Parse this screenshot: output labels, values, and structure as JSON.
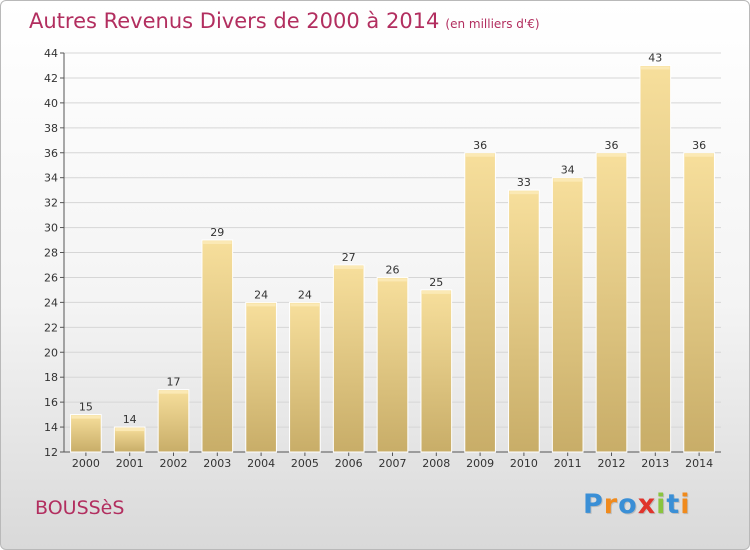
{
  "header": {
    "title": "Autres Revenus Divers de 2000 à 2014",
    "unit": "(en milliers d'€)"
  },
  "footer": {
    "place": "BOUSSèS",
    "logo_letters": [
      "P",
      "r",
      "o",
      "x",
      "i",
      "t",
      "i"
    ],
    "logo_colors": [
      "#3a8fd6",
      "#f08a1c",
      "#3a8fd6",
      "#e0342c",
      "#8ac43f",
      "#3a8fd6",
      "#f08a1c"
    ]
  },
  "chart_data": {
    "type": "bar",
    "title": "Autres Revenus Divers de 2000 à 2014",
    "categories": [
      "2000",
      "2001",
      "2002",
      "2003",
      "2004",
      "2005",
      "2006",
      "2007",
      "2008",
      "2009",
      "2010",
      "2011",
      "2012",
      "2013",
      "2014"
    ],
    "values": [
      15,
      14,
      17,
      29,
      24,
      24,
      27,
      26,
      25,
      36,
      33,
      34,
      36,
      43,
      36
    ],
    "ylim": [
      12,
      44
    ],
    "yticks": [
      12,
      14,
      16,
      18,
      20,
      22,
      24,
      26,
      28,
      30,
      32,
      34,
      36,
      38,
      40,
      42,
      44
    ],
    "grid": true,
    "bar_color": "#e8cd85"
  }
}
